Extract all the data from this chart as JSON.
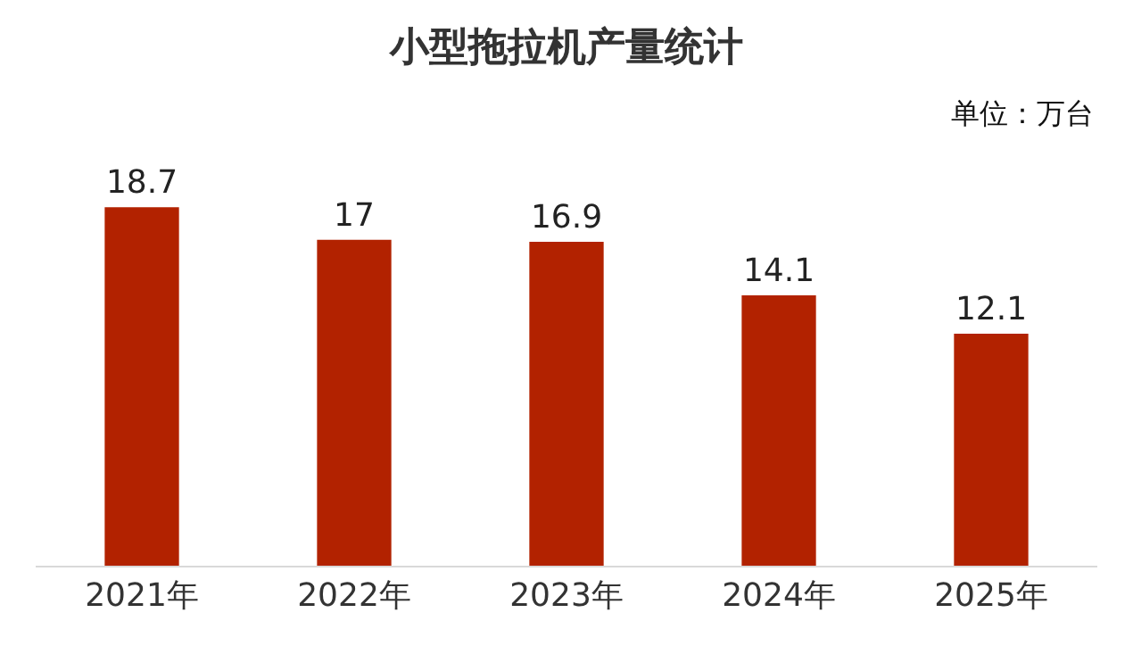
{
  "chart_data": {
    "type": "bar",
    "title": "小型拖拉机产量统计",
    "annotations": [
      "单位：万台"
    ],
    "categories": [
      "2021年",
      "2022年",
      "2023年",
      "2024年",
      "2025年"
    ],
    "values": [
      18.7,
      17,
      16.9,
      14.1,
      12.1
    ],
    "color": "#b22200",
    "data_labels": true
  }
}
